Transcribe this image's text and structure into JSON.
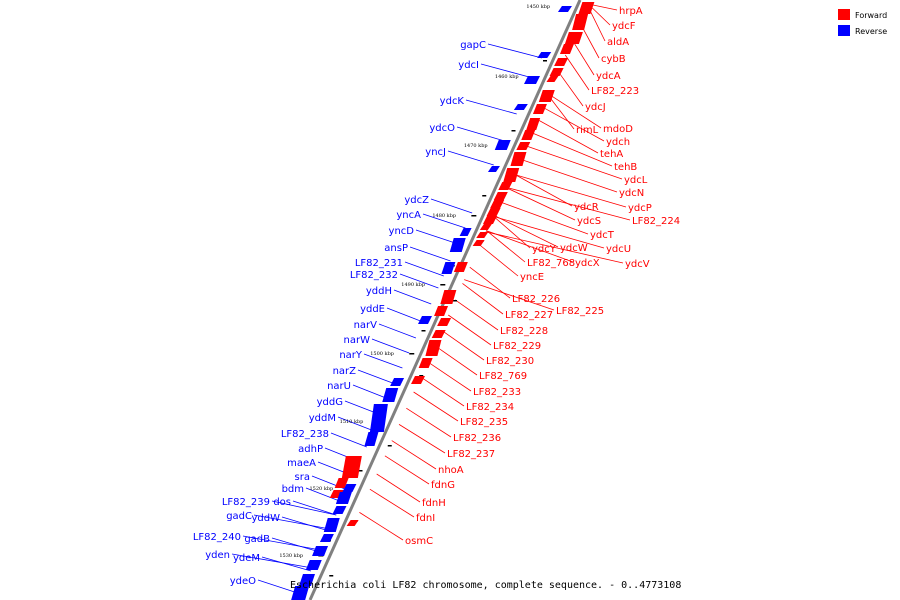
{
  "caption": "Escherichia coli LF82 chromosome, complete sequence. - 0..4773108",
  "colors": {
    "forward": "#ff0000",
    "reverse": "#0000ff",
    "axis": "#808080",
    "marker": "#000000"
  },
  "legend": [
    {
      "label": "Forward",
      "color": "#ff0000"
    },
    {
      "label": "Reverse",
      "color": "#0000ff"
    }
  ],
  "ticks": [
    "1450 kbp",
    "1460 kbp",
    "1470 kbp",
    "1480 kbp",
    "1490 kbp",
    "1500 kbp",
    "1510 kbp",
    "1520 kbp",
    "1530 kbp"
  ],
  "forward_labels": [
    "hrpA",
    "ydcF",
    "aldA",
    "cybB",
    "ydcA",
    "LF82_223",
    "ydcJ",
    "rimL",
    "mdoD",
    "ydch",
    "tehA",
    "tehB",
    "ydcL",
    "ydcN",
    "ydcP",
    "ydcR",
    "LF82_224",
    "ydcS",
    "ydcT",
    "ydcY",
    "ydcW",
    "ydcU",
    "LF82_768",
    "ydcX",
    "ydcV",
    "yncE",
    "LF82_226",
    "LF82_227",
    "LF82_225",
    "LF82_228",
    "LF82_229",
    "LF82_230",
    "LF82_769",
    "LF82_233",
    "LF82_234",
    "LF82_235",
    "LF82_236",
    "LF82_237",
    "nhoA",
    "fdnG",
    "fdnH",
    "fdnI",
    "osmC"
  ],
  "reverse_labels": [
    "gapC",
    "ydcI",
    "ydcK",
    "ydcO",
    "yncJ",
    "ydcZ",
    "yncA",
    "yncD",
    "ansP",
    "LF82_231",
    "LF82_232",
    "yddH",
    "yddE",
    "narV",
    "narW",
    "narY",
    "narZ",
    "narU",
    "yddG",
    "yddM",
    "LF82_238",
    "adhP",
    "maeA",
    "sra",
    "bdm",
    "LF82_239",
    "dos",
    "gadC",
    "yddW",
    "LF82_240",
    "gadB",
    "yden",
    "ydeM",
    "ydeO"
  ]
}
